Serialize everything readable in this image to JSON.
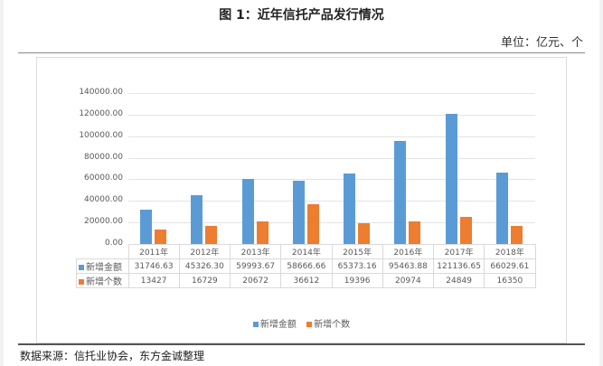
{
  "title": "图 1：近年信托产品发行情况",
  "unit": "单位：亿元、个",
  "source": "数据来源：信托业协会，东方金诚整理",
  "colors": {
    "amount": "#5b9bd5",
    "count": "#ed7d31"
  },
  "yticks": [
    "140000.00",
    "120000.00",
    "100000.00",
    "80000.00",
    "60000.00",
    "40000.00",
    "20000.00",
    "0.00"
  ],
  "table": {
    "years": [
      "2011年",
      "2012年",
      "2013年",
      "2014年",
      "2015年",
      "2016年",
      "2017年",
      "2018年"
    ],
    "rows": [
      {
        "label": "新增金额",
        "values": [
          "31746.63",
          "45326.30",
          "59993.67",
          "58666.66",
          "65373.16",
          "95463.88",
          "121136.65",
          "66029.61"
        ]
      },
      {
        "label": "新增个数",
        "values": [
          "13427",
          "16729",
          "20672",
          "36612",
          "19396",
          "20974",
          "24849",
          "16350"
        ]
      }
    ]
  },
  "legend": {
    "amount": "新增金额",
    "count": "新增个数"
  },
  "chart_data": {
    "type": "bar",
    "title": "图 1：近年信托产品发行情况",
    "subtitle": "单位：亿元、个",
    "categories": [
      "2011年",
      "2012年",
      "2013年",
      "2014年",
      "2015年",
      "2016年",
      "2017年",
      "2018年"
    ],
    "series": [
      {
        "name": "新增金额",
        "values": [
          31746.63,
          45326.3,
          59993.67,
          58666.66,
          65373.16,
          95463.88,
          121136.65,
          66029.61
        ]
      },
      {
        "name": "新增个数",
        "values": [
          13427,
          16729,
          20672,
          36612,
          19396,
          20974,
          24849,
          16350
        ]
      }
    ],
    "xlabel": "",
    "ylabel": "",
    "ylim": [
      0,
      140000
    ],
    "yticks": [
      0,
      20000,
      40000,
      60000,
      80000,
      100000,
      120000,
      140000
    ],
    "grid": true,
    "legend_position": "bottom",
    "data_table": true
  }
}
